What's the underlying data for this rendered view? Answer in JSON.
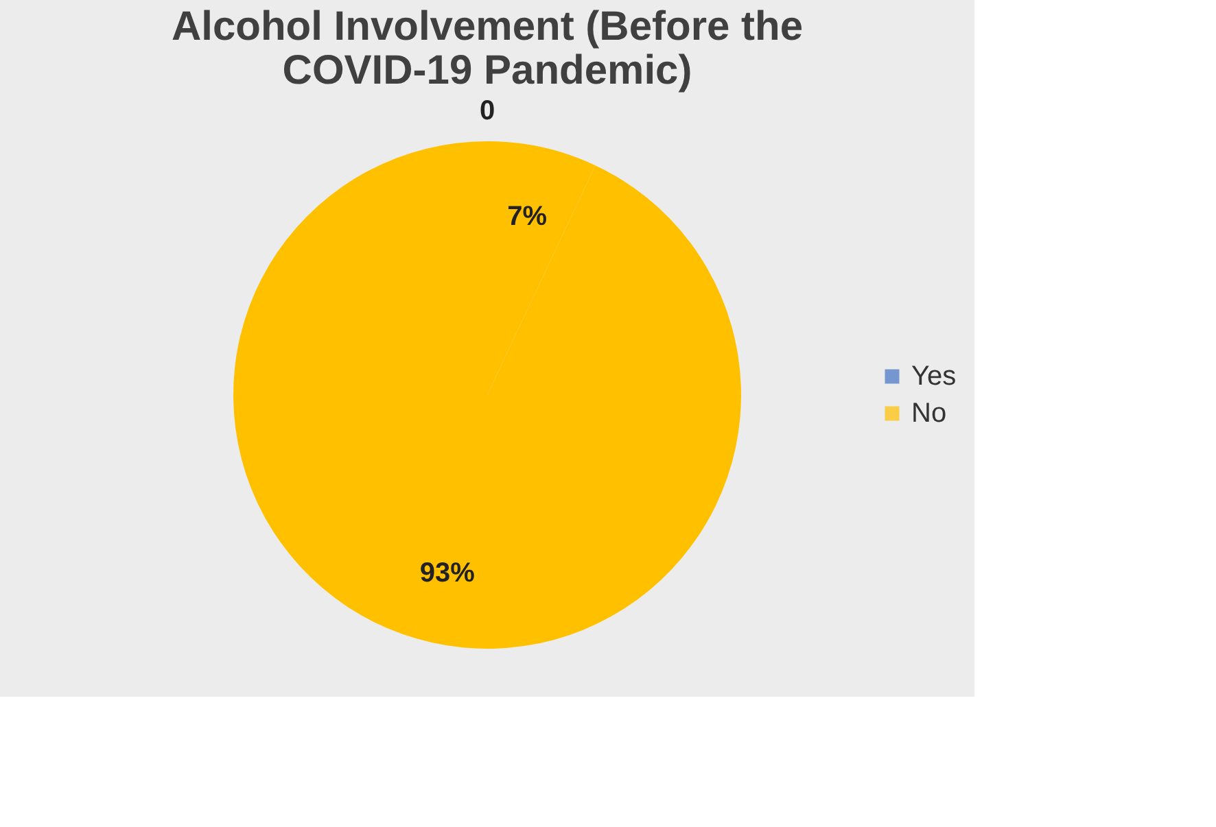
{
  "chart_data": {
    "type": "pie",
    "title": "Alcohol Involvement (Before the COVID-19 Pandemic)",
    "categories": [
      "Yes",
      "No",
      null
    ],
    "values": [
      0,
      7,
      93
    ],
    "value_labels": [
      "0",
      "7%",
      "93%"
    ],
    "colors": [
      "#4472c4",
      "#ffc000",
      "#ffc000"
    ],
    "legend": "right"
  }
}
